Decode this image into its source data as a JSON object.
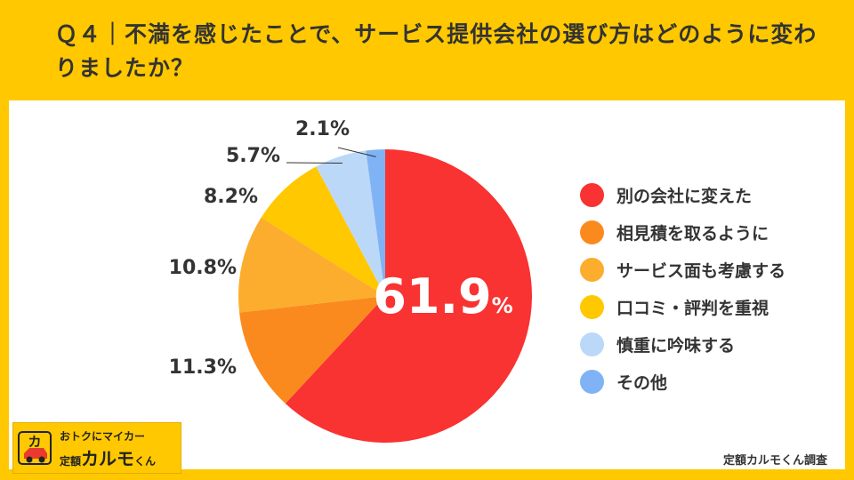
{
  "title": "Ｑ４｜不満を感じたことで、サービス提供会社の選び方はどのように変わりましたか？",
  "chart_data": {
    "type": "pie",
    "title": "Ｑ４｜不満を感じたことで、サービス提供会社の選び方はどのように変わりましたか？",
    "categories": [
      "別の会社に変えた",
      "相見積を取るように",
      "サービス面も考慮する",
      "口コミ・評判を重視",
      "慎重に吟味する",
      "その他"
    ],
    "values": [
      61.9,
      11.3,
      10.8,
      8.2,
      5.7,
      2.1
    ],
    "value_labels": [
      "61.9",
      "11.3%",
      "10.8%",
      "8.2%",
      "5.7%",
      "2.1%"
    ],
    "percent_sign": "%",
    "colors": [
      "#F93232",
      "#FB8A1E",
      "#FCAD2E",
      "#FFC800",
      "#BCD8F8",
      "#7FB3F5"
    ],
    "legend_position": "right"
  },
  "logo": {
    "top": "おトクにマイカー",
    "bottom_prefix": "定額",
    "bottom_main": "カルモ",
    "bottom_suffix": "くん",
    "mark_glyph": "カ"
  },
  "credit": "定額カルモくん調査"
}
